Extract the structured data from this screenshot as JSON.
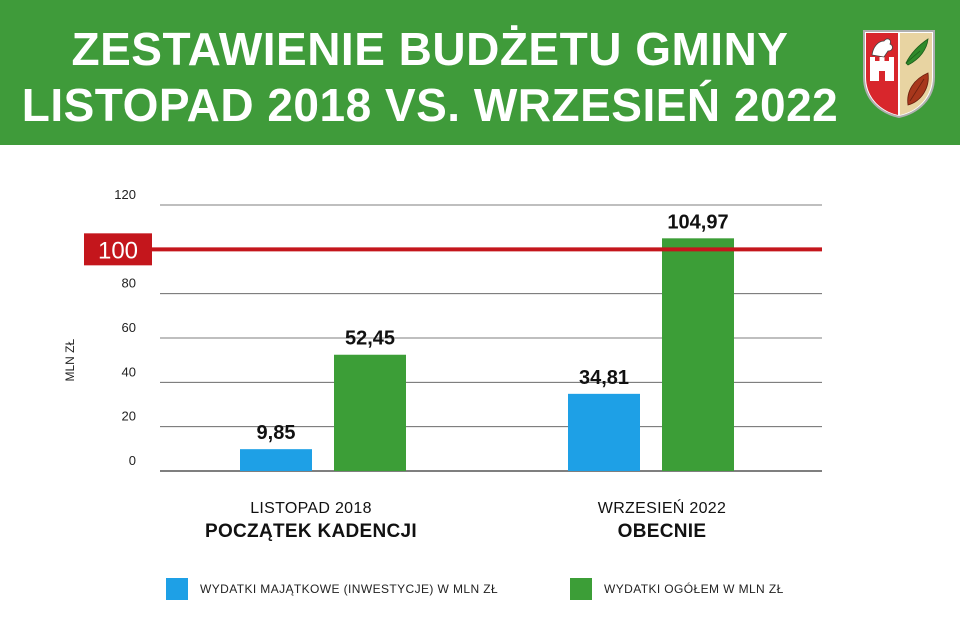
{
  "header": {
    "title_line1": "ZESTAWIENIE BUDŻETU GMINY",
    "title_line2": "LISTOPAD 2018 VS. WRZESIEŃ 2022",
    "colors": {
      "banner": "#3f9b3a",
      "text": "#ffffff"
    }
  },
  "crest": {
    "icon": "coat-of-arms-icon"
  },
  "chart_data": {
    "type": "bar",
    "ylabel": "MLN ZŁ",
    "ylim": [
      0,
      120
    ],
    "yticks": [
      "0",
      "20",
      "40",
      "60",
      "80",
      "120"
    ],
    "reference_line": {
      "value": 100,
      "label": "100",
      "color": "#c4161c"
    },
    "categories": [
      {
        "line1": "LISTOPAD 2018",
        "line2": "POCZĄTEK KADENCJI"
      },
      {
        "line1": "WRZESIEŃ 2022",
        "line2": "OBECNIE"
      }
    ],
    "series": [
      {
        "name": "WYDATKI MAJĄTKOWE (INWESTYCJE) W MLN ZŁ",
        "color": "#1ea0e6",
        "values": [
          9.85,
          34.81
        ],
        "labels": [
          "9,85",
          "34,81"
        ]
      },
      {
        "name": "WYDATKI OGÓŁEM W MLN ZŁ",
        "color": "#3c9e37",
        "values": [
          52.45,
          104.97
        ],
        "labels": [
          "52,45",
          "104,97"
        ]
      }
    ],
    "grid": true,
    "legend_position": "bottom"
  }
}
